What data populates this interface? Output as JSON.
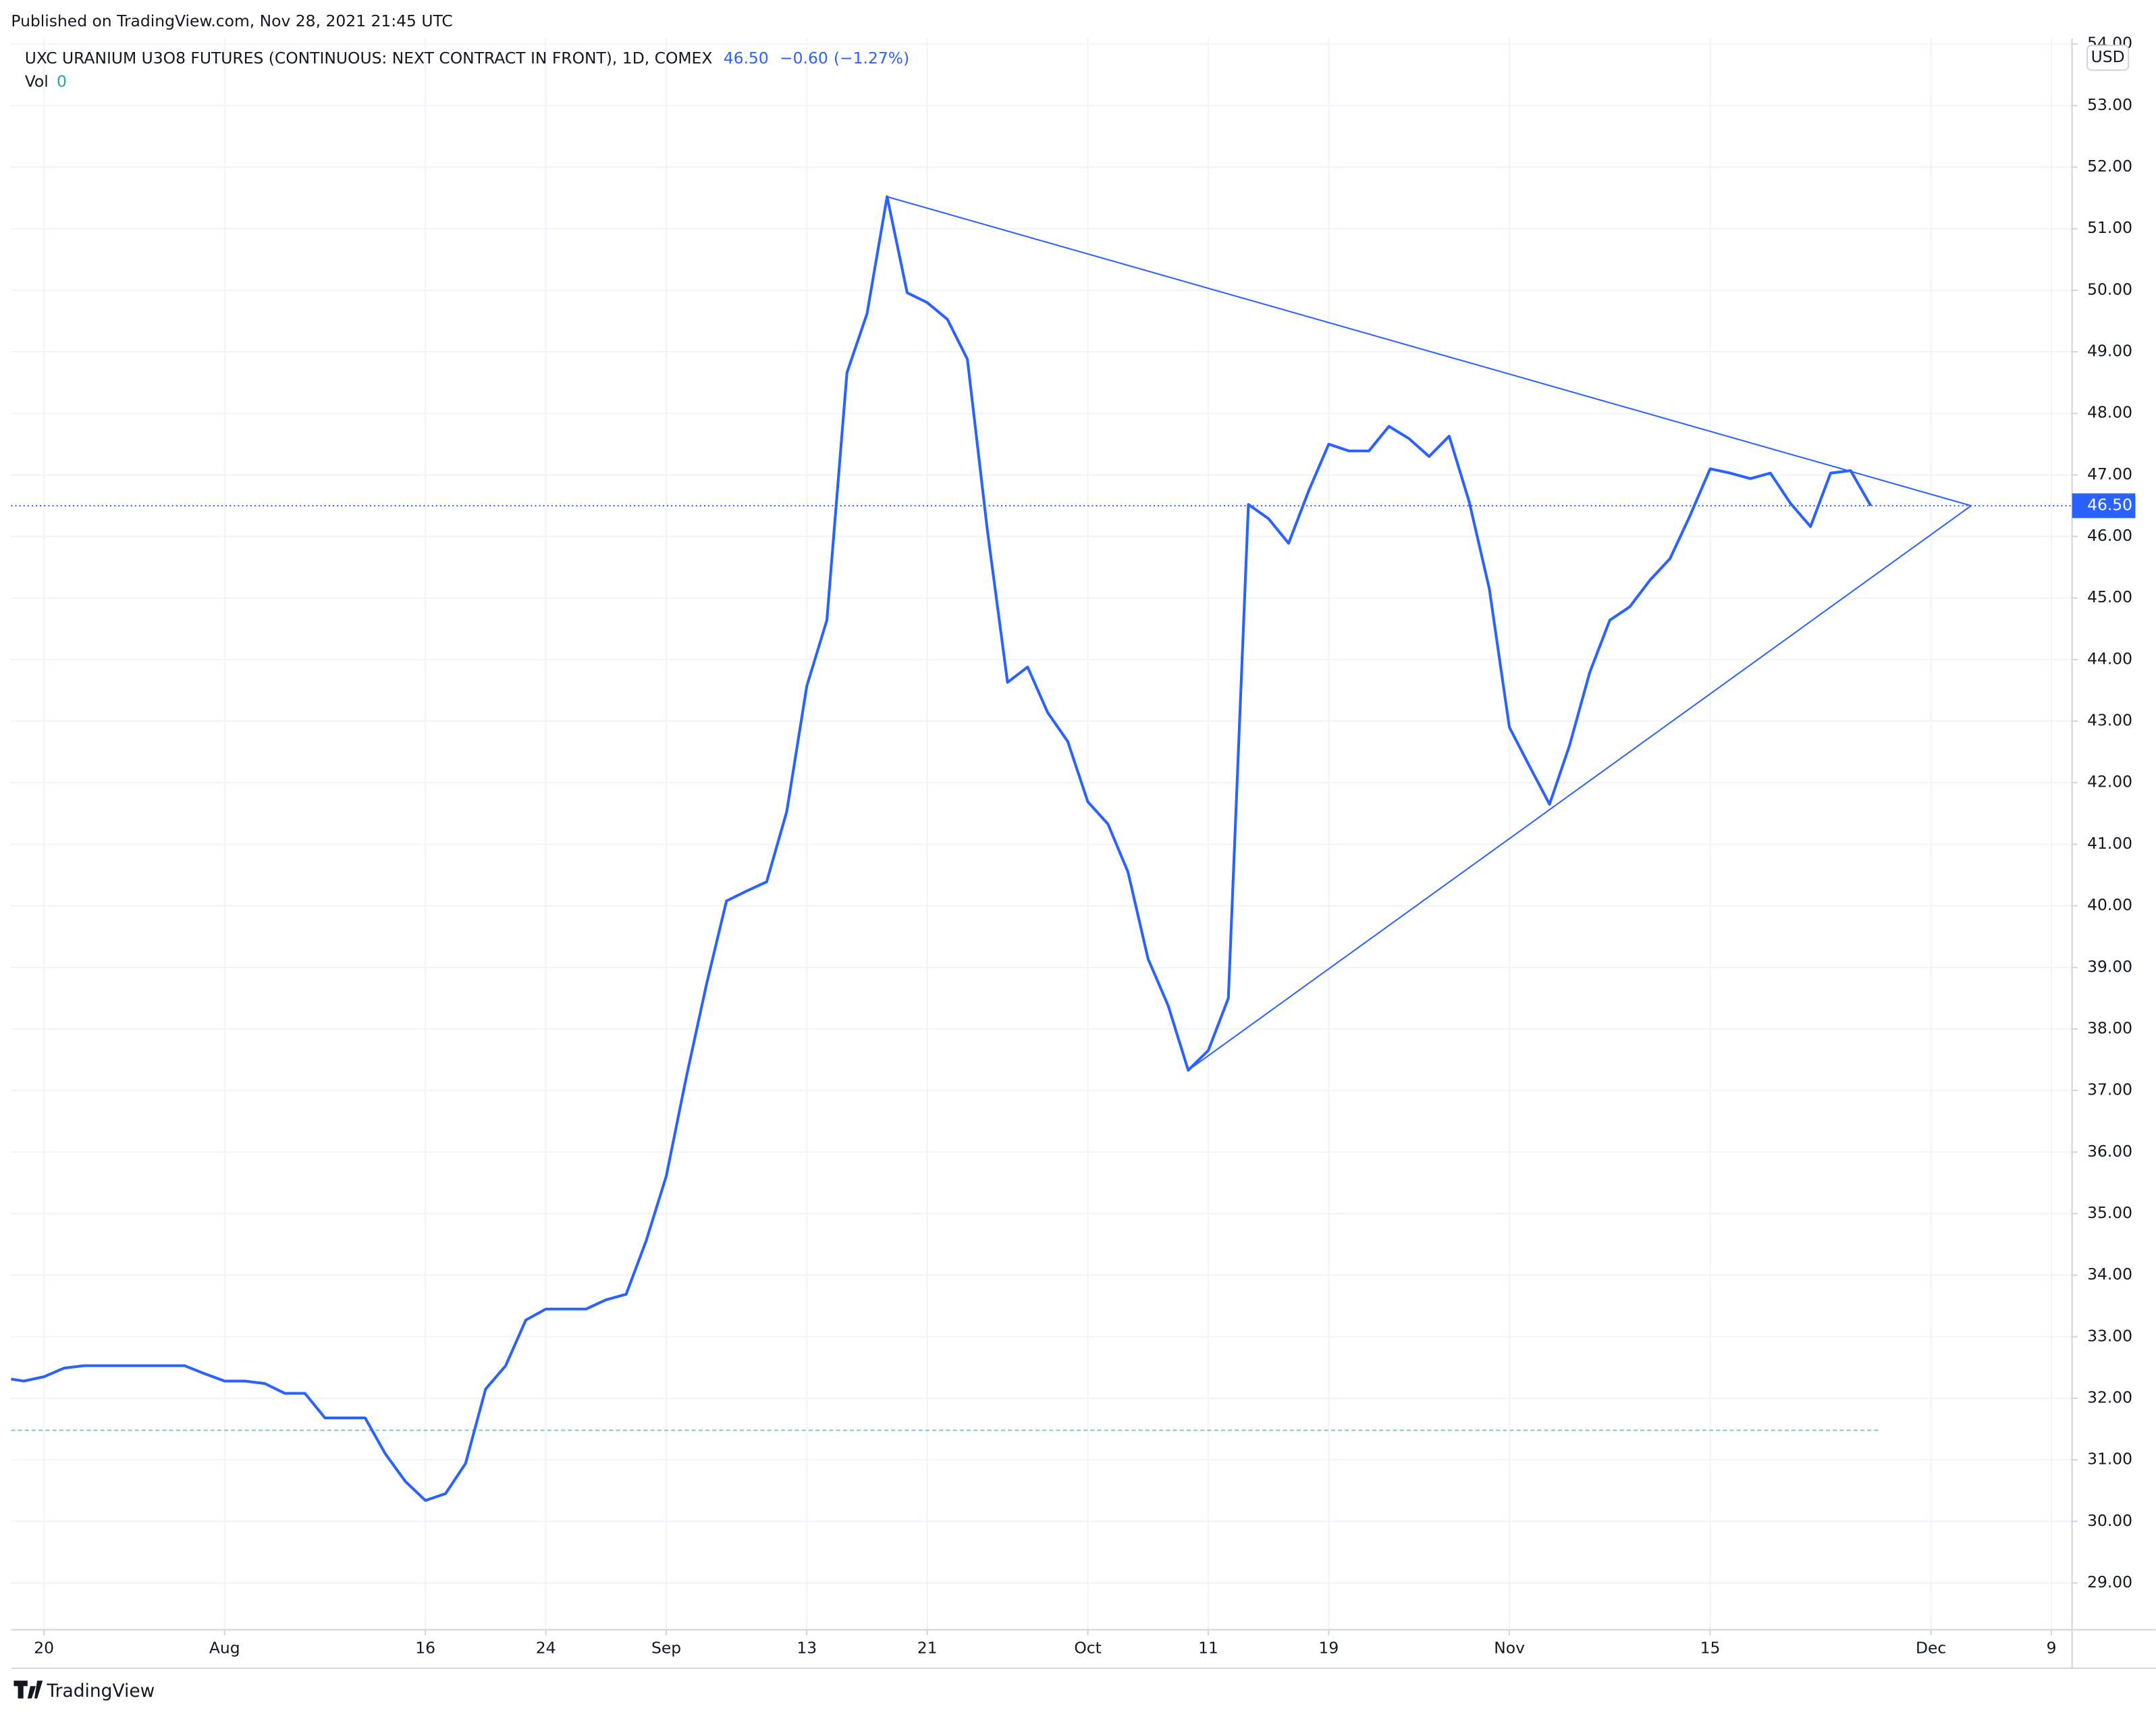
{
  "chart_data": {
    "type": "line",
    "subtitle": "Published on TradingView.com, Nov 28, 2021 21:45 UTC",
    "title": "UXC URANIUM U3O8 FUTURES (CONTINUOUS: NEXT CONTRACT IN FRONT), 1D, COMEX",
    "last": {
      "value": 46.5,
      "label": "46.50"
    },
    "change": {
      "value": -0.6,
      "label": "−0.60"
    },
    "change_pct": {
      "value": -1.27,
      "label": "(−1.27%)"
    },
    "volume": {
      "name": "Vol",
      "value": 0,
      "color": "#26a69a"
    },
    "currency": "USD",
    "brand": "TradingView",
    "series": [
      {
        "name": "UXC URANIUM U3O8 FUTURES",
        "color": "#2962ff",
        "values": [
          32.33,
          32.28,
          32.35,
          32.49,
          32.53,
          32.53,
          32.53,
          32.53,
          32.53,
          32.53,
          32.4,
          32.28,
          32.28,
          32.24,
          32.08,
          32.08,
          31.68,
          31.68,
          31.68,
          31.1,
          30.65,
          30.34,
          30.45,
          30.94,
          32.15,
          32.53,
          33.27,
          33.45,
          33.45,
          33.45,
          33.6,
          33.69,
          34.56,
          35.61,
          37.22,
          38.72,
          40.08,
          40.24,
          40.39,
          41.53,
          43.57,
          44.64,
          48.66,
          49.62,
          51.52,
          49.96,
          49.8,
          49.53,
          48.88,
          46.09,
          43.63,
          43.88,
          43.14,
          42.67,
          41.69,
          41.33,
          40.55,
          39.14,
          38.38,
          37.33,
          37.65,
          38.5,
          46.52,
          46.29,
          45.89,
          46.74,
          47.5,
          47.39,
          47.39,
          47.79,
          47.59,
          47.3,
          47.63,
          46.56,
          45.15,
          42.9,
          42.27,
          41.65,
          42.61,
          43.79,
          44.64,
          44.86,
          45.29,
          45.64,
          46.34,
          47.1,
          47.03,
          46.94,
          47.03,
          46.54,
          46.16,
          47.03,
          47.07,
          46.5
        ]
      }
    ],
    "trendlines": [
      {
        "color": "#2962ff",
        "points": [
          [
            44,
            51.52
          ],
          [
            98,
            46.5
          ]
        ]
      },
      {
        "color": "#2962ff",
        "points": [
          [
            59,
            37.33
          ],
          [
            98,
            46.5
          ]
        ]
      }
    ],
    "xlim": [
      0.36,
      103.03
    ],
    "xticks": [
      {
        "value": 2,
        "label": "20"
      },
      {
        "value": 11,
        "label": "Aug"
      },
      {
        "value": 21,
        "label": "16"
      },
      {
        "value": 27,
        "label": "24"
      },
      {
        "value": 33,
        "label": "Sep"
      },
      {
        "value": 40,
        "label": "13"
      },
      {
        "value": 46,
        "label": "21"
      },
      {
        "value": 54,
        "label": "Oct"
      },
      {
        "value": 60,
        "label": "11"
      },
      {
        "value": 66,
        "label": "19"
      },
      {
        "value": 75,
        "label": "Nov"
      },
      {
        "value": 85,
        "label": "15"
      },
      {
        "value": 96,
        "label": "Dec"
      },
      {
        "value": 102,
        "label": "9"
      }
    ],
    "ylim": [
      28.24,
      54.09
    ],
    "yticks": [
      {
        "value": 29,
        "label": "29.00"
      },
      {
        "value": 30,
        "label": "30.00"
      },
      {
        "value": 31,
        "label": "31.00"
      },
      {
        "value": 32,
        "label": "32.00"
      },
      {
        "value": 33,
        "label": "33.00"
      },
      {
        "value": 34,
        "label": "34.00"
      },
      {
        "value": 35,
        "label": "35.00"
      },
      {
        "value": 36,
        "label": "36.00"
      },
      {
        "value": 37,
        "label": "37.00"
      },
      {
        "value": 38,
        "label": "38.00"
      },
      {
        "value": 39,
        "label": "39.00"
      },
      {
        "value": 40,
        "label": "40.00"
      },
      {
        "value": 41,
        "label": "41.00"
      },
      {
        "value": 42,
        "label": "42.00"
      },
      {
        "value": 43,
        "label": "43.00"
      },
      {
        "value": 44,
        "label": "44.00"
      },
      {
        "value": 45,
        "label": "45.00"
      },
      {
        "value": 46,
        "label": "46.00"
      },
      {
        "value": 47,
        "label": "47.00"
      },
      {
        "value": 48,
        "label": "48.00"
      },
      {
        "value": 49,
        "label": "49.00"
      },
      {
        "value": 50,
        "label": "50.00"
      },
      {
        "value": 51,
        "label": "51.00"
      },
      {
        "value": 52,
        "label": "52.00"
      },
      {
        "value": 53,
        "label": "53.00"
      },
      {
        "value": 54,
        "label": "54.00"
      }
    ],
    "grid": true
  }
}
